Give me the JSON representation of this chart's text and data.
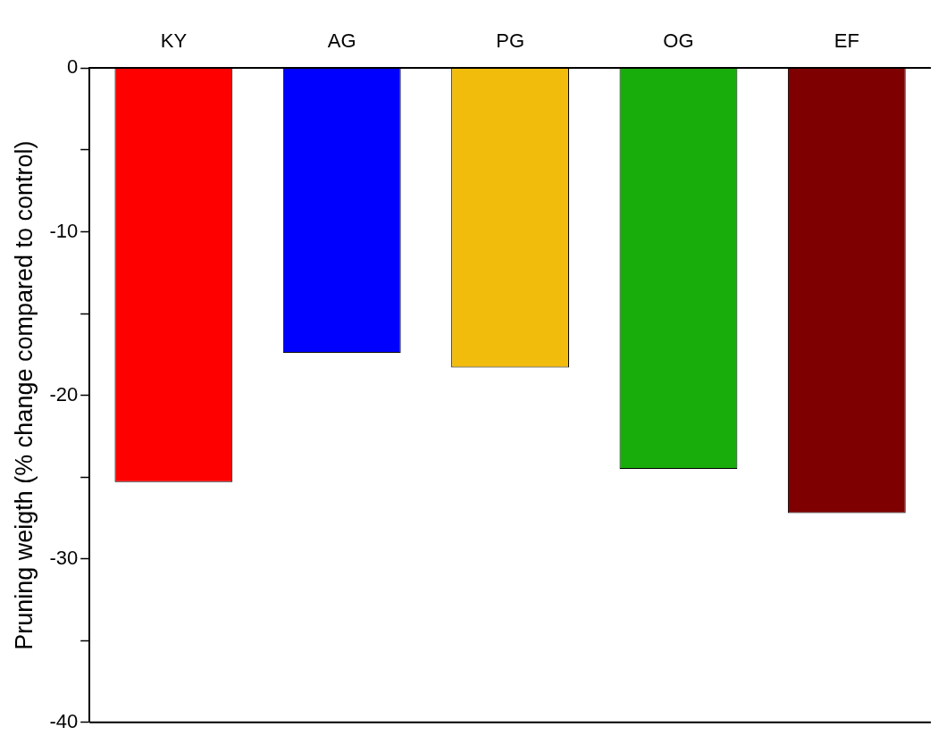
{
  "chart_data": {
    "type": "bar",
    "ylabel": "Pruning weigth (% change compared to control)",
    "categories": [
      "KY",
      "AG",
      "PG",
      "OG",
      "EF"
    ],
    "values": [
      -25.3,
      -17.4,
      -18.3,
      -24.5,
      -27.2
    ],
    "colors": [
      "#ff0000",
      "#0000ff",
      "#f2bc0c",
      "#19ad0c",
      "#7f0000"
    ],
    "ylim": [
      -40,
      0
    ],
    "yticks": [
      {
        "value": -40,
        "label": "-40"
      },
      {
        "value": -35,
        "label": null
      },
      {
        "value": -30,
        "label": "-30"
      },
      {
        "value": -25,
        "label": null
      },
      {
        "value": -20,
        "label": "-20"
      },
      {
        "value": -15,
        "label": null
      },
      {
        "value": -10,
        "label": "-10"
      },
      {
        "value": -5,
        "label": null
      },
      {
        "value": 0,
        "label": "0"
      }
    ],
    "grid": false,
    "legend": false
  }
}
